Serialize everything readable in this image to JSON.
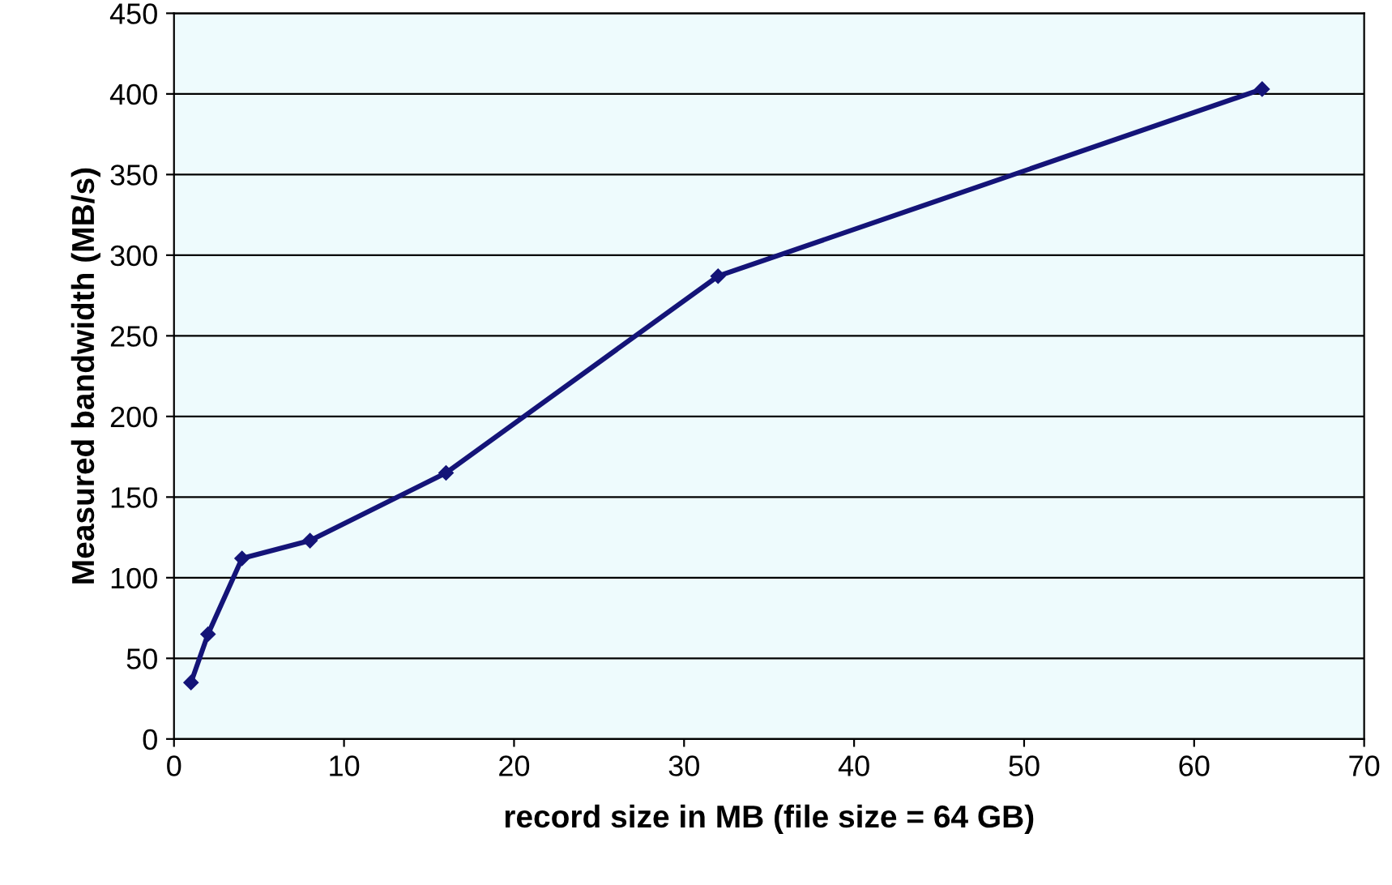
{
  "chart_data": {
    "type": "line",
    "xlabel": "record size in MB (file size = 64 GB)",
    "ylabel": "Measured bandwidth (MB/s)",
    "x": [
      1,
      2,
      4,
      8,
      16,
      32,
      64
    ],
    "series": [
      {
        "color": "#141478",
        "values": [
          35,
          65,
          112,
          123,
          165,
          287,
          403
        ]
      }
    ],
    "xlim": [
      0,
      70
    ],
    "xticks": [
      0,
      10,
      20,
      30,
      40,
      50,
      60,
      70
    ],
    "ylim": [
      0,
      450
    ],
    "yticks": [
      0,
      50,
      100,
      150,
      200,
      250,
      300,
      350,
      400,
      450
    ],
    "grid": "y",
    "marker": "diamond",
    "line_style": "solid",
    "legend": false
  }
}
